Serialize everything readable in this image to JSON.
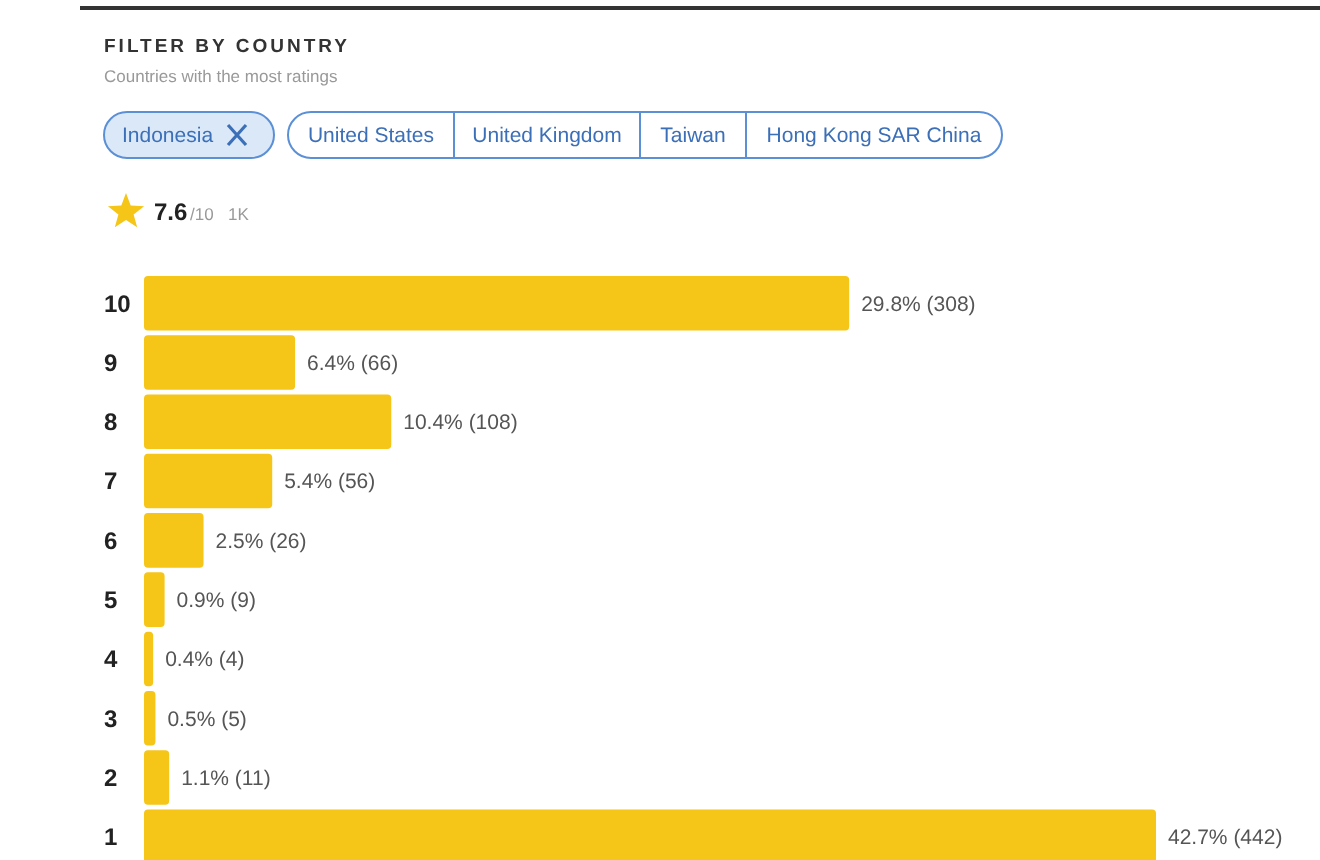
{
  "chart_data": {
    "type": "bar",
    "orientation": "horizontal",
    "title": "FILTER BY COUNTRY",
    "subtitle": "Countries with the most ratings",
    "annotations": [
      "Indonesia",
      "United States",
      "United Kingdom",
      "Taiwan",
      "Hong Kong SAR China",
      "7.6",
      "/10",
      "1K"
    ],
    "categories": [
      "10",
      "9",
      "8",
      "7",
      "6",
      "5",
      "4",
      "3",
      "2",
      "1"
    ],
    "values": [
      308,
      66,
      108,
      56,
      26,
      9,
      4,
      5,
      11,
      442
    ],
    "color": "#f5c518",
    "value_labels": [
      "29.8% (308)",
      "6.4% (66)",
      "10.4% (108)",
      "5.4% (56)",
      "2.5% (26)",
      "0.9% (9)",
      "0.4% (4)",
      "0.5% (5)",
      "1.1% (11)",
      "42.7% (442)"
    ]
  }
}
